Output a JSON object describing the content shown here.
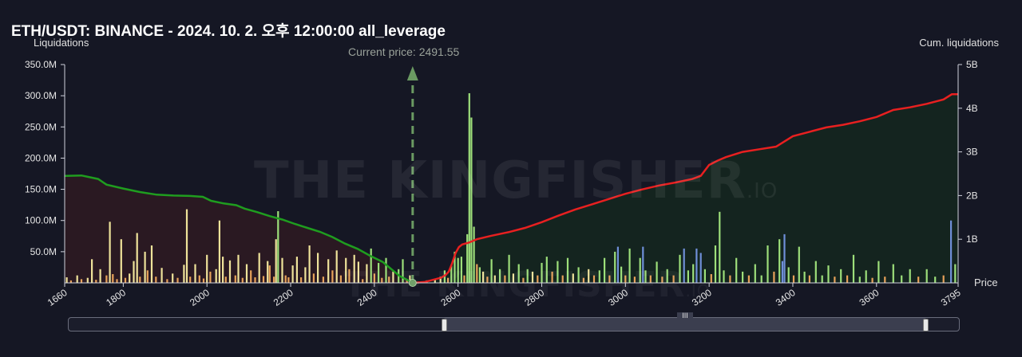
{
  "title": "ETH/USDT: BINANCE - 2024. 10. 2. 오후 12:00:00 all_leverage",
  "current_price_label": "Current price: 2491.55",
  "watermark": {
    "main": "THE KINGFISHER",
    "suffix": ".IO"
  },
  "colors": {
    "background": "#151724",
    "long_cum_line": "#1f9d1f",
    "long_cum_fill": "#2c1a22",
    "short_cum_line": "#e82020",
    "short_cum_fill": "#14261f",
    "bar_orange": "#e8a25a",
    "bar_yellow": "#efe39a",
    "bar_green": "#9ddf7a",
    "bar_blue": "#6f8fd8",
    "current_price_marker": "#6a9a62"
  },
  "chart_data": {
    "type": "bar",
    "title": "ETH/USDT: BINANCE - 2024. 10. 2. 오후 12:00:00 all_leverage",
    "xlabel": "Price",
    "ylabel": "Liquidations",
    "y2label": "Cum. liquidations",
    "xlim": [
      1660,
      3795
    ],
    "ylim": [
      0,
      350000000
    ],
    "y2lim": [
      0,
      5000000000
    ],
    "x_ticks": [
      "1660",
      "1800",
      "2000",
      "2200",
      "2400",
      "2600",
      "2800",
      "3000",
      "3200",
      "3400",
      "3600",
      "3795"
    ],
    "y_ticks": [
      "350.0M",
      "300.0M",
      "250.0M",
      "200.0M",
      "150.0M",
      "100.0M",
      "50.0M"
    ],
    "y2_ticks": [
      "5B",
      "4B",
      "3B",
      "2B",
      "1B"
    ],
    "current_price": 2491.55,
    "bars": [
      [
        1665,
        9,
        "yellow"
      ],
      [
        1675,
        4,
        "orange"
      ],
      [
        1690,
        12,
        "yellow"
      ],
      [
        1700,
        6,
        "orange"
      ],
      [
        1715,
        8,
        "yellow"
      ],
      [
        1725,
        38,
        "yellow"
      ],
      [
        1735,
        5,
        "orange"
      ],
      [
        1745,
        22,
        "yellow"
      ],
      [
        1760,
        12,
        "orange"
      ],
      [
        1768,
        98,
        "yellow"
      ],
      [
        1775,
        14,
        "orange"
      ],
      [
        1785,
        6,
        "orange"
      ],
      [
        1795,
        70,
        "yellow"
      ],
      [
        1805,
        8,
        "orange"
      ],
      [
        1815,
        15,
        "yellow"
      ],
      [
        1825,
        35,
        "yellow"
      ],
      [
        1833,
        80,
        "yellow"
      ],
      [
        1840,
        10,
        "orange"
      ],
      [
        1852,
        50,
        "yellow"
      ],
      [
        1858,
        20,
        "orange"
      ],
      [
        1868,
        60,
        "yellow"
      ],
      [
        1878,
        10,
        "orange"
      ],
      [
        1892,
        24,
        "yellow"
      ],
      [
        1905,
        6,
        "orange"
      ],
      [
        1918,
        15,
        "yellow"
      ],
      [
        1930,
        8,
        "orange"
      ],
      [
        1945,
        29,
        "yellow"
      ],
      [
        1952,
        118,
        "yellow"
      ],
      [
        1960,
        10,
        "orange"
      ],
      [
        1972,
        30,
        "yellow"
      ],
      [
        1982,
        12,
        "orange"
      ],
      [
        1992,
        7,
        "orange"
      ],
      [
        2000,
        45,
        "yellow"
      ],
      [
        2008,
        18,
        "orange"
      ],
      [
        2022,
        22,
        "yellow"
      ],
      [
        2030,
        100,
        "yellow"
      ],
      [
        2038,
        42,
        "yellow"
      ],
      [
        2045,
        10,
        "orange"
      ],
      [
        2055,
        36,
        "yellow"
      ],
      [
        2068,
        12,
        "orange"
      ],
      [
        2075,
        45,
        "yellow"
      ],
      [
        2085,
        8,
        "orange"
      ],
      [
        2095,
        30,
        "yellow"
      ],
      [
        2105,
        20,
        "orange"
      ],
      [
        2115,
        9,
        "orange"
      ],
      [
        2125,
        48,
        "yellow"
      ],
      [
        2135,
        11,
        "orange"
      ],
      [
        2145,
        35,
        "yellow"
      ],
      [
        2150,
        28,
        "orange"
      ],
      [
        2160,
        10,
        "orange"
      ],
      [
        2165,
        70,
        "yellow"
      ],
      [
        2170,
        115,
        "green"
      ],
      [
        2180,
        40,
        "yellow"
      ],
      [
        2188,
        12,
        "orange"
      ],
      [
        2195,
        9,
        "orange"
      ],
      [
        2205,
        28,
        "yellow"
      ],
      [
        2215,
        42,
        "yellow"
      ],
      [
        2225,
        9,
        "orange"
      ],
      [
        2235,
        25,
        "yellow"
      ],
      [
        2245,
        60,
        "yellow"
      ],
      [
        2255,
        15,
        "orange"
      ],
      [
        2265,
        48,
        "yellow"
      ],
      [
        2278,
        10,
        "orange"
      ],
      [
        2290,
        38,
        "yellow"
      ],
      [
        2300,
        20,
        "orange"
      ],
      [
        2310,
        52,
        "yellow"
      ],
      [
        2320,
        12,
        "orange"
      ],
      [
        2332,
        40,
        "yellow"
      ],
      [
        2340,
        22,
        "orange"
      ],
      [
        2352,
        45,
        "yellow"
      ],
      [
        2362,
        34,
        "yellow"
      ],
      [
        2372,
        6,
        "orange"
      ],
      [
        2382,
        30,
        "yellow"
      ],
      [
        2392,
        55,
        "green"
      ],
      [
        2400,
        15,
        "orange"
      ],
      [
        2410,
        32,
        "green"
      ],
      [
        2418,
        8,
        "orange"
      ],
      [
        2428,
        40,
        "green"
      ],
      [
        2435,
        10,
        "orange"
      ],
      [
        2445,
        18,
        "yellow"
      ],
      [
        2458,
        22,
        "green"
      ],
      [
        2468,
        38,
        "green"
      ],
      [
        2478,
        6,
        "orange"
      ],
      [
        2485,
        12,
        "yellow"
      ],
      [
        2525,
        4,
        "yellow"
      ],
      [
        2545,
        6,
        "yellow"
      ],
      [
        2558,
        10,
        "yellow"
      ],
      [
        2568,
        20,
        "green"
      ],
      [
        2576,
        8,
        "orange"
      ],
      [
        2584,
        28,
        "green"
      ],
      [
        2592,
        50,
        "green"
      ],
      [
        2600,
        40,
        "green"
      ],
      [
        2608,
        42,
        "green"
      ],
      [
        2615,
        12,
        "orange"
      ],
      [
        2622,
        78,
        "green"
      ],
      [
        2627,
        304,
        "green"
      ],
      [
        2632,
        265,
        "green"
      ],
      [
        2638,
        90,
        "green"
      ],
      [
        2645,
        30,
        "orange"
      ],
      [
        2652,
        25,
        "green"
      ],
      [
        2660,
        18,
        "yellow"
      ],
      [
        2670,
        10,
        "orange"
      ],
      [
        2680,
        38,
        "green"
      ],
      [
        2688,
        12,
        "yellow"
      ],
      [
        2700,
        22,
        "green"
      ],
      [
        2712,
        12,
        "orange"
      ],
      [
        2722,
        45,
        "green"
      ],
      [
        2732,
        15,
        "yellow"
      ],
      [
        2745,
        30,
        "green"
      ],
      [
        2756,
        8,
        "orange"
      ],
      [
        2766,
        22,
        "green"
      ],
      [
        2778,
        18,
        "yellow"
      ],
      [
        2790,
        12,
        "orange"
      ],
      [
        2800,
        32,
        "green"
      ],
      [
        2812,
        42,
        "green"
      ],
      [
        2825,
        18,
        "orange"
      ],
      [
        2838,
        35,
        "green"
      ],
      [
        2850,
        12,
        "orange"
      ],
      [
        2862,
        40,
        "green"
      ],
      [
        2875,
        15,
        "yellow"
      ],
      [
        2888,
        25,
        "green"
      ],
      [
        2900,
        8,
        "orange"
      ],
      [
        2912,
        22,
        "yellow"
      ],
      [
        2925,
        12,
        "orange"
      ],
      [
        2938,
        20,
        "green"
      ],
      [
        2950,
        40,
        "green"
      ],
      [
        2962,
        12,
        "orange"
      ],
      [
        2975,
        50,
        "green"
      ],
      [
        2982,
        58,
        "blue"
      ],
      [
        2990,
        26,
        "green"
      ],
      [
        3000,
        12,
        "orange"
      ],
      [
        3010,
        55,
        "green"
      ],
      [
        3022,
        10,
        "orange"
      ],
      [
        3035,
        40,
        "green"
      ],
      [
        3042,
        58,
        "blue"
      ],
      [
        3048,
        20,
        "green"
      ],
      [
        3060,
        12,
        "orange"
      ],
      [
        3075,
        34,
        "green"
      ],
      [
        3088,
        10,
        "orange"
      ],
      [
        3100,
        22,
        "green"
      ],
      [
        3115,
        12,
        "orange"
      ],
      [
        3130,
        45,
        "green"
      ],
      [
        3140,
        55,
        "blue"
      ],
      [
        3150,
        20,
        "green"
      ],
      [
        3162,
        30,
        "green"
      ],
      [
        3170,
        55,
        "blue"
      ],
      [
        3180,
        48,
        "blue"
      ],
      [
        3190,
        22,
        "green"
      ],
      [
        3205,
        14,
        "orange"
      ],
      [
        3215,
        60,
        "green"
      ],
      [
        3225,
        114,
        "green"
      ],
      [
        3235,
        20,
        "green"
      ],
      [
        3250,
        12,
        "orange"
      ],
      [
        3265,
        40,
        "green"
      ],
      [
        3280,
        18,
        "green"
      ],
      [
        3295,
        12,
        "orange"
      ],
      [
        3310,
        30,
        "green"
      ],
      [
        3325,
        12,
        "green"
      ],
      [
        3340,
        60,
        "green"
      ],
      [
        3355,
        18,
        "orange"
      ],
      [
        3368,
        70,
        "green"
      ],
      [
        3375,
        35,
        "blue"
      ],
      [
        3380,
        78,
        "blue"
      ],
      [
        3390,
        25,
        "green"
      ],
      [
        3402,
        12,
        "orange"
      ],
      [
        3415,
        58,
        "green"
      ],
      [
        3428,
        18,
        "green"
      ],
      [
        3440,
        12,
        "orange"
      ],
      [
        3455,
        35,
        "green"
      ],
      [
        3470,
        12,
        "green"
      ],
      [
        3485,
        28,
        "green"
      ],
      [
        3500,
        10,
        "orange"
      ],
      [
        3515,
        22,
        "green"
      ],
      [
        3530,
        12,
        "orange"
      ],
      [
        3545,
        45,
        "green"
      ],
      [
        3560,
        10,
        "green"
      ],
      [
        3575,
        20,
        "green"
      ],
      [
        3590,
        8,
        "orange"
      ],
      [
        3605,
        35,
        "green"
      ],
      [
        3620,
        10,
        "orange"
      ],
      [
        3640,
        30,
        "green"
      ],
      [
        3660,
        12,
        "green"
      ],
      [
        3680,
        22,
        "green"
      ],
      [
        3700,
        10,
        "orange"
      ],
      [
        3720,
        22,
        "green"
      ],
      [
        3740,
        10,
        "green"
      ],
      [
        3760,
        12,
        "orange"
      ],
      [
        3778,
        100,
        "blue"
      ],
      [
        3788,
        30,
        "green"
      ]
    ],
    "long_cumulative": [
      [
        1660,
        2450
      ],
      [
        1700,
        2460
      ],
      [
        1720,
        2420
      ],
      [
        1740,
        2380
      ],
      [
        1760,
        2250
      ],
      [
        1800,
        2160
      ],
      [
        1840,
        2080
      ],
      [
        1880,
        2020
      ],
      [
        1920,
        2000
      ],
      [
        1960,
        1990
      ],
      [
        1990,
        1970
      ],
      [
        2010,
        1880
      ],
      [
        2040,
        1820
      ],
      [
        2070,
        1780
      ],
      [
        2090,
        1700
      ],
      [
        2120,
        1620
      ],
      [
        2150,
        1530
      ],
      [
        2180,
        1450
      ],
      [
        2210,
        1350
      ],
      [
        2240,
        1260
      ],
      [
        2270,
        1170
      ],
      [
        2300,
        1050
      ],
      [
        2330,
        900
      ],
      [
        2360,
        780
      ],
      [
        2390,
        620
      ],
      [
        2420,
        480
      ],
      [
        2440,
        320
      ],
      [
        2460,
        160
      ],
      [
        2480,
        60
      ],
      [
        2491.55,
        0
      ]
    ],
    "short_cumulative": [
      [
        2491.55,
        0
      ],
      [
        2520,
        20
      ],
      [
        2540,
        70
      ],
      [
        2560,
        120
      ],
      [
        2570,
        180
      ],
      [
        2578,
        260
      ],
      [
        2586,
        450
      ],
      [
        2594,
        680
      ],
      [
        2602,
        820
      ],
      [
        2610,
        880
      ],
      [
        2625,
        920
      ],
      [
        2645,
        1000
      ],
      [
        2680,
        1080
      ],
      [
        2720,
        1160
      ],
      [
        2760,
        1260
      ],
      [
        2800,
        1390
      ],
      [
        2840,
        1540
      ],
      [
        2880,
        1680
      ],
      [
        2920,
        1800
      ],
      [
        2960,
        1920
      ],
      [
        3000,
        2040
      ],
      [
        3040,
        2140
      ],
      [
        3080,
        2230
      ],
      [
        3120,
        2300
      ],
      [
        3160,
        2380
      ],
      [
        3180,
        2450
      ],
      [
        3200,
        2700
      ],
      [
        3220,
        2800
      ],
      [
        3240,
        2880
      ],
      [
        3280,
        3000
      ],
      [
        3320,
        3060
      ],
      [
        3360,
        3120
      ],
      [
        3400,
        3360
      ],
      [
        3440,
        3460
      ],
      [
        3480,
        3560
      ],
      [
        3520,
        3620
      ],
      [
        3560,
        3700
      ],
      [
        3600,
        3800
      ],
      [
        3640,
        3960
      ],
      [
        3680,
        4020
      ],
      [
        3720,
        4100
      ],
      [
        3760,
        4200
      ],
      [
        3780,
        4320
      ],
      [
        3795,
        4320
      ]
    ]
  },
  "scrollbar": {
    "grip_label": "III"
  }
}
